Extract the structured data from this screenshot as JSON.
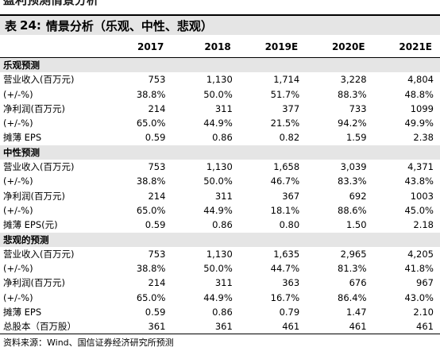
{
  "page_heading": "盈利预测情景分析",
  "table_title": {
    "prefix": "表",
    "number": "24:",
    "text": "情景分析（乐观、中性、悲观）"
  },
  "columns": [
    "",
    "2017",
    "2018",
    "2019E",
    "2020E",
    "2021E"
  ],
  "sections": [
    {
      "name": "乐观预测",
      "rows": [
        {
          "label": "营业收入(百万元)",
          "values": [
            "753",
            "1,130",
            "1,714",
            "3,228",
            "4,804"
          ]
        },
        {
          "label": "(+/-%)",
          "values": [
            "38.8%",
            "50.0%",
            "51.7%",
            "88.3%",
            "48.8%"
          ]
        },
        {
          "label": "净利润(百万元)",
          "values": [
            "214",
            "311",
            "377",
            "733",
            "1099"
          ]
        },
        {
          "label": "(+/-%)",
          "values": [
            "65.0%",
            "44.9%",
            "21.5%",
            "94.2%",
            "49.9%"
          ]
        },
        {
          "label": "摊薄 EPS",
          "values": [
            "0.59",
            "0.86",
            "0.82",
            "1.59",
            "2.38"
          ]
        }
      ]
    },
    {
      "name": "中性预测",
      "rows": [
        {
          "label": "营业收入(百万元)",
          "values": [
            "753",
            "1,130",
            "1,658",
            "3,039",
            "4,371"
          ]
        },
        {
          "label": "(+/-%)",
          "values": [
            "38.8%",
            "50.0%",
            "46.7%",
            "83.3%",
            "43.8%"
          ]
        },
        {
          "label": "净利润(百万元)",
          "values": [
            "214",
            "311",
            "367",
            "692",
            "1003"
          ]
        },
        {
          "label": "(+/-%)",
          "values": [
            "65.0%",
            "44.9%",
            "18.1%",
            "88.6%",
            "45.0%"
          ]
        },
        {
          "label": "摊薄 EPS(元)",
          "values": [
            "0.59",
            "0.86",
            "0.80",
            "1.50",
            "2.18"
          ]
        }
      ]
    },
    {
      "name": "悲观的预测",
      "rows": [
        {
          "label": "营业收入(百万元)",
          "values": [
            "753",
            "1,130",
            "1,635",
            "2,965",
            "4,205"
          ]
        },
        {
          "label": "(+/-%)",
          "values": [
            "38.8%",
            "50.0%",
            "44.7%",
            "81.3%",
            "41.8%"
          ]
        },
        {
          "label": "净利润(百万元)",
          "values": [
            "214",
            "311",
            "363",
            "676",
            "967"
          ]
        },
        {
          "label": "(+/-%)",
          "values": [
            "65.0%",
            "44.9%",
            "16.7%",
            "86.4%",
            "43.0%"
          ]
        },
        {
          "label": "摊薄 EPS",
          "values": [
            "0.59",
            "0.86",
            "0.79",
            "1.47",
            "2.10"
          ]
        },
        {
          "label": "总股本（百万股）",
          "values": [
            "361",
            "361",
            "461",
            "461",
            "461"
          ]
        }
      ]
    }
  ],
  "source": "资料来源：Wind、国信证券经济研究所预测"
}
